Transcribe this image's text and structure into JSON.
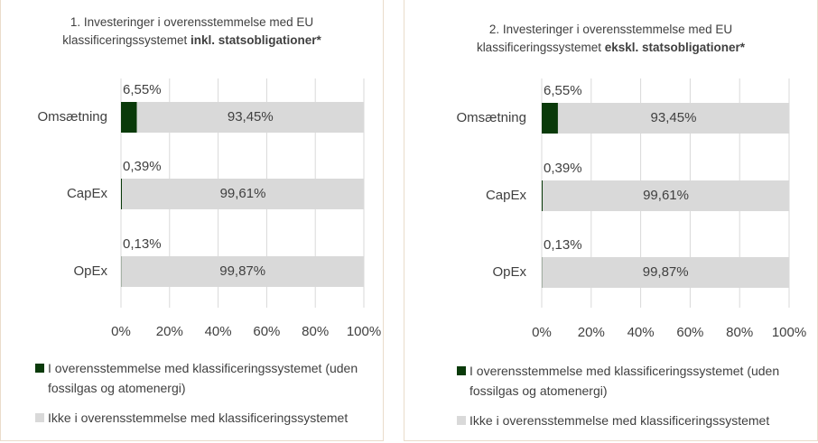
{
  "chart_data": [
    {
      "type": "bar",
      "orientation": "horizontal",
      "stacked": true,
      "title": [
        "1. Investeringer i overensstemmelse med EU",
        "klassificeringssystemet",
        "inkl. statsobligationer*"
      ],
      "categories": [
        "Omsætning",
        "CapEx",
        "OpEx"
      ],
      "series": [
        {
          "name": "I overensstemmelse med klassificeringssystemet (uden fossilgas og atomenergi)",
          "color": "#0a3a0a",
          "values": [
            6.55,
            0.39,
            0.13
          ],
          "value_labels": [
            "6,55%",
            "0,39%",
            "0,13%"
          ]
        },
        {
          "name": "Ikke i overensstemmelse med klassificeringssystemet",
          "color": "#d9d9d9",
          "values": [
            93.45,
            99.61,
            99.87
          ],
          "value_labels": [
            "93,45%",
            "99,61%",
            "99,87%"
          ]
        }
      ],
      "xlim": [
        0,
        100
      ],
      "xticks": [
        {
          "value": 0,
          "label": "0%"
        },
        {
          "value": 20,
          "label": "20%"
        },
        {
          "value": 40,
          "label": "40%"
        },
        {
          "value": 60,
          "label": "60%"
        },
        {
          "value": 80,
          "label": "80%"
        },
        {
          "value": 100,
          "label": "100%"
        }
      ],
      "grid": true
    },
    {
      "type": "bar",
      "orientation": "horizontal",
      "stacked": true,
      "title": [
        "2. Investeringer i overensstemmelse med EU",
        "klassificeringssystemet",
        "ekskl. statsobligationer*"
      ],
      "categories": [
        "Omsætning",
        "CapEx",
        "OpEx"
      ],
      "series": [
        {
          "name": "I overensstemmelse med klassificeringssystemet (uden fossilgas og atomenergi)",
          "color": "#0a3a0a",
          "values": [
            6.55,
            0.39,
            0.13
          ],
          "value_labels": [
            "6,55%",
            "0,39%",
            "0,13%"
          ]
        },
        {
          "name": "Ikke i overensstemmelse med klassificeringssystemet",
          "color": "#d9d9d9",
          "values": [
            93.45,
            99.61,
            99.87
          ],
          "value_labels": [
            "93,45%",
            "99,61%",
            "99,87%"
          ]
        }
      ],
      "xlim": [
        0,
        100
      ],
      "xticks": [
        {
          "value": 0,
          "label": "0%"
        },
        {
          "value": 20,
          "label": "20%"
        },
        {
          "value": 40,
          "label": "40%"
        },
        {
          "value": 60,
          "label": "60%"
        },
        {
          "value": 80,
          "label": "80%"
        },
        {
          "value": 100,
          "label": "100%"
        }
      ],
      "grid": true
    }
  ]
}
